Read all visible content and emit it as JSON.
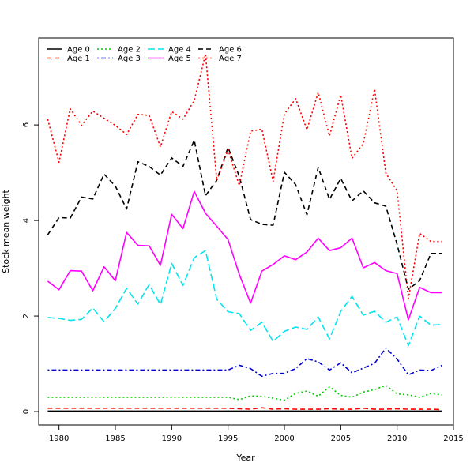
{
  "chart_data": {
    "type": "line",
    "title": "",
    "xlabel": "Year",
    "ylabel": "Stock mean weight",
    "xlim": [
      1978.2,
      2015.0
    ],
    "ylim": [
      -0.28,
      7.82
    ],
    "xticks": [
      1980,
      1985,
      1990,
      1995,
      2000,
      2005,
      2010,
      2015
    ],
    "yticks": [
      0,
      2,
      4,
      6
    ],
    "grid": false,
    "legend_placement": "top-left",
    "x": [
      1979,
      1980,
      1981,
      1982,
      1983,
      1984,
      1985,
      1986,
      1987,
      1988,
      1989,
      1990,
      1991,
      1992,
      1993,
      1994,
      1995,
      1996,
      1997,
      1998,
      1999,
      2000,
      2001,
      2002,
      2003,
      2004,
      2005,
      2006,
      2007,
      2008,
      2009,
      2010,
      2011,
      2012,
      2013,
      2014
    ],
    "series": [
      {
        "name": "Age 0",
        "color": "#000000",
        "dash": "solid",
        "values": [
          0.01,
          0.01,
          0.01,
          0.01,
          0.01,
          0.01,
          0.01,
          0.01,
          0.01,
          0.01,
          0.01,
          0.01,
          0.01,
          0.01,
          0.01,
          0.01,
          0.01,
          0.01,
          0.01,
          0.01,
          0.01,
          0.01,
          0.01,
          0.01,
          0.01,
          0.01,
          0.01,
          0.01,
          0.01,
          0.01,
          0.01,
          0.01,
          0.01,
          0.01,
          0.01,
          0.01
        ]
      },
      {
        "name": "Age 1",
        "color": "#ff0000",
        "dash": "dashed",
        "values": [
          0.07,
          0.07,
          0.07,
          0.07,
          0.07,
          0.07,
          0.07,
          0.07,
          0.07,
          0.07,
          0.07,
          0.07,
          0.07,
          0.07,
          0.07,
          0.07,
          0.07,
          0.06,
          0.05,
          0.08,
          0.05,
          0.06,
          0.05,
          0.05,
          0.05,
          0.06,
          0.05,
          0.05,
          0.07,
          0.05,
          0.05,
          0.06,
          0.05,
          0.05,
          0.05,
          0.04
        ]
      },
      {
        "name": "Age 2",
        "color": "#00cc00",
        "dash": "dotted",
        "values": [
          0.3,
          0.3,
          0.3,
          0.3,
          0.3,
          0.3,
          0.3,
          0.3,
          0.3,
          0.3,
          0.3,
          0.3,
          0.3,
          0.3,
          0.3,
          0.3,
          0.3,
          0.25,
          0.33,
          0.32,
          0.28,
          0.24,
          0.38,
          0.43,
          0.32,
          0.52,
          0.34,
          0.3,
          0.41,
          0.46,
          0.55,
          0.37,
          0.35,
          0.3,
          0.38,
          0.35
        ]
      },
      {
        "name": "Age 3",
        "color": "#0000cc",
        "dash": "dotdash",
        "values": [
          0.87,
          0.87,
          0.87,
          0.87,
          0.87,
          0.87,
          0.87,
          0.87,
          0.87,
          0.87,
          0.87,
          0.87,
          0.87,
          0.87,
          0.87,
          0.87,
          0.87,
          0.97,
          0.9,
          0.74,
          0.8,
          0.8,
          0.9,
          1.11,
          1.04,
          0.87,
          1.02,
          0.81,
          0.91,
          1.01,
          1.33,
          1.1,
          0.77,
          0.87,
          0.86,
          0.97
        ]
      },
      {
        "name": "Age 4",
        "color": "#00e5ee",
        "dash": "longdash",
        "values": [
          1.97,
          1.95,
          1.91,
          1.93,
          2.17,
          1.88,
          2.16,
          2.58,
          2.25,
          2.66,
          2.24,
          3.1,
          2.64,
          3.22,
          3.37,
          2.35,
          2.09,
          2.05,
          1.7,
          1.87,
          1.47,
          1.68,
          1.77,
          1.72,
          1.98,
          1.52,
          2.1,
          2.41,
          2.02,
          2.1,
          1.87,
          1.98,
          1.38,
          2.0,
          1.81,
          1.82
        ]
      },
      {
        "name": "Age 5",
        "color": "#ff00ff",
        "dash": "solid",
        "values": [
          2.73,
          2.55,
          2.95,
          2.94,
          2.53,
          3.03,
          2.74,
          3.75,
          3.48,
          3.47,
          3.06,
          4.13,
          3.83,
          4.61,
          4.15,
          3.88,
          3.6,
          2.87,
          2.27,
          2.94,
          3.08,
          3.26,
          3.18,
          3.34,
          3.63,
          3.37,
          3.43,
          3.63,
          3.01,
          3.12,
          2.95,
          2.89,
          1.92,
          2.6,
          2.49,
          2.49
        ]
      },
      {
        "name": "Age 6",
        "color": "#000000",
        "dash": "dashed",
        "values": [
          3.7,
          4.06,
          4.05,
          4.49,
          4.45,
          4.97,
          4.72,
          4.24,
          5.23,
          5.13,
          4.95,
          5.31,
          5.13,
          5.68,
          4.52,
          4.84,
          5.53,
          4.92,
          4.02,
          3.92,
          3.9,
          5.01,
          4.75,
          4.12,
          5.11,
          4.44,
          4.88,
          4.41,
          4.62,
          4.37,
          4.3,
          3.5,
          2.56,
          2.74,
          3.31,
          3.31
        ]
      },
      {
        "name": "Age 7",
        "color": "#ff0000",
        "dash": "dotted",
        "values": [
          6.12,
          5.22,
          6.34,
          5.99,
          6.29,
          6.14,
          5.99,
          5.8,
          6.22,
          6.2,
          5.54,
          6.28,
          6.12,
          6.51,
          7.48,
          4.84,
          5.48,
          4.73,
          5.87,
          5.91,
          4.82,
          6.23,
          6.55,
          5.9,
          6.68,
          5.77,
          6.63,
          5.3,
          5.61,
          6.75,
          4.99,
          4.62,
          2.36,
          3.73,
          3.56,
          3.56
        ]
      }
    ]
  }
}
